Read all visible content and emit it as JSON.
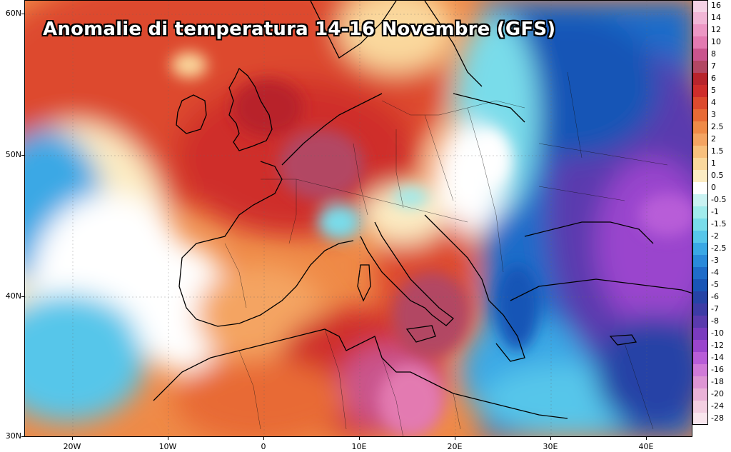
{
  "map": {
    "title": "Anomalie di temperatura 14-16 Novembre (GFS)",
    "lat_ticks": [
      "60N",
      "50N",
      "40N",
      "30N"
    ],
    "lon_ticks": [
      "20W",
      "10W",
      "0",
      "10E",
      "20E",
      "30E",
      "40E"
    ],
    "legend": [
      {
        "label": "16",
        "color": "#f5d3e6"
      },
      {
        "label": "14",
        "color": "#f1b6d6"
      },
      {
        "label": "12",
        "color": "#ec97c4"
      },
      {
        "label": "10",
        "color": "#e37ab1"
      },
      {
        "label": "8",
        "color": "#c9548d"
      },
      {
        "label": "7",
        "color": "#b24763"
      },
      {
        "label": "6",
        "color": "#b8242c"
      },
      {
        "label": "5",
        "color": "#cf2d2b"
      },
      {
        "label": "4",
        "color": "#dd4a2d"
      },
      {
        "label": "3",
        "color": "#e86a35"
      },
      {
        "label": "2.5",
        "color": "#ef8a47"
      },
      {
        "label": "2",
        "color": "#f4a462"
      },
      {
        "label": "1.5",
        "color": "#f8c07d"
      },
      {
        "label": "1",
        "color": "#fad89d"
      },
      {
        "label": "0.5",
        "color": "#fcecc3"
      },
      {
        "label": "0",
        "color": "#ffffff"
      },
      {
        "label": "-0.5",
        "color": "#c9f2f2"
      },
      {
        "label": "-1",
        "color": "#a1ebec"
      },
      {
        "label": "-1.5",
        "color": "#79dcea"
      },
      {
        "label": "-2",
        "color": "#57c6ea"
      },
      {
        "label": "-2.5",
        "color": "#3aa8e5"
      },
      {
        "label": "-3",
        "color": "#2a8ada"
      },
      {
        "label": "-4",
        "color": "#1f6cc9"
      },
      {
        "label": "-5",
        "color": "#1955b6"
      },
      {
        "label": "-6",
        "color": "#2643a6"
      },
      {
        "label": "-7",
        "color": "#3d3ba6"
      },
      {
        "label": "-8",
        "color": "#5a3aae"
      },
      {
        "label": "-10",
        "color": "#7a3bbf"
      },
      {
        "label": "-12",
        "color": "#9a45cd"
      },
      {
        "label": "-14",
        "color": "#b85dd8"
      },
      {
        "label": "-16",
        "color": "#d07ad8"
      },
      {
        "label": "-18",
        "color": "#de95d4"
      },
      {
        "label": "-20",
        "color": "#eab2d8"
      },
      {
        "label": "-24",
        "color": "#f3cfe2"
      },
      {
        "label": "-28",
        "color": "#f9e6ee"
      }
    ],
    "extent": {
      "lon_min": -25,
      "lon_max": 45,
      "lat_min": 30,
      "lat_max": 61
    }
  }
}
